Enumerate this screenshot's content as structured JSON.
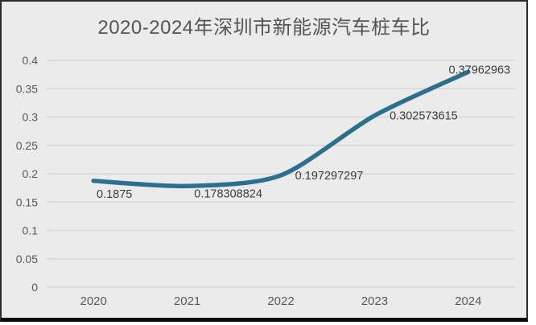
{
  "title": "2020-2024年深圳市新能源汽车桩车比",
  "colors": {
    "background": "#ebebeb",
    "gridline": "#d7d7d7",
    "line": "#2d6f8f",
    "title_text": "#555555",
    "axis_text": "#595959",
    "data_label_text": "#3d3d3d",
    "border": "#2b2b2b"
  },
  "chart_data": {
    "type": "line",
    "title": "2020-2024年深圳市新能源汽车桩车比",
    "categories": [
      "2020",
      "2021",
      "2022",
      "2023",
      "2024"
    ],
    "values": [
      0.1875,
      0.178308824,
      0.197297297,
      0.302573615,
      0.37962963
    ],
    "data_labels": [
      "0.1875",
      "0.178308824",
      "0.197297297",
      "0.302573615",
      "0.37962963"
    ],
    "xlabel": "",
    "ylabel": "",
    "ylim": [
      0,
      0.4
    ],
    "ytick_step": 0.05,
    "ytick_labels": [
      "0",
      "0.05",
      "0.1",
      "0.15",
      "0.2",
      "0.25",
      "0.3",
      "0.35",
      "0.4"
    ],
    "grid": true,
    "legend": false,
    "smoothed_line": true
  }
}
